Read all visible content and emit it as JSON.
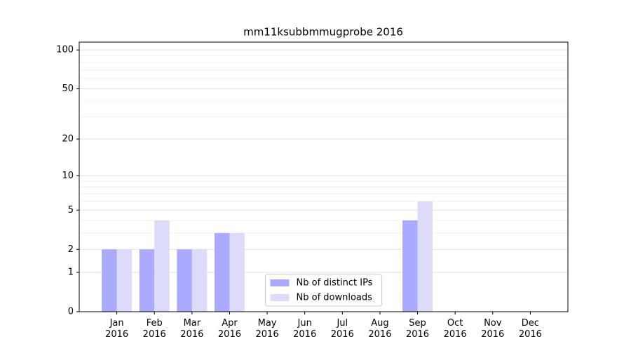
{
  "chart_data": {
    "type": "bar",
    "title": "mm11ksubbmmugprobe 2016",
    "categories": [
      "Jan\n2016",
      "Feb\n2016",
      "Mar\n2016",
      "Apr\n2016",
      "May\n2016",
      "Jun\n2016",
      "Jul\n2016",
      "Aug\n2016",
      "Sep\n2016",
      "Oct\n2016",
      "Nov\n2016",
      "Dec\n2016"
    ],
    "series": [
      {
        "name": "Nb of distinct IPs",
        "color": "#aaaaff",
        "values": [
          2,
          2,
          2,
          3,
          0,
          0,
          0,
          0,
          4,
          0,
          0,
          0
        ]
      },
      {
        "name": "Nb of downloads",
        "color": "#dcdcfa",
        "values": [
          2,
          4,
          2,
          3,
          0,
          0,
          0,
          0,
          6,
          0,
          0,
          0
        ]
      }
    ],
    "y_scale": "log1p",
    "ylim": [
      0,
      115
    ],
    "yticks": [
      0,
      1,
      2,
      5,
      10,
      20,
      50,
      100
    ],
    "minor_yticks": [
      3,
      4,
      6,
      7,
      8,
      9,
      30,
      40,
      60,
      70,
      80,
      90
    ],
    "grid": true,
    "legend": "lower center"
  }
}
